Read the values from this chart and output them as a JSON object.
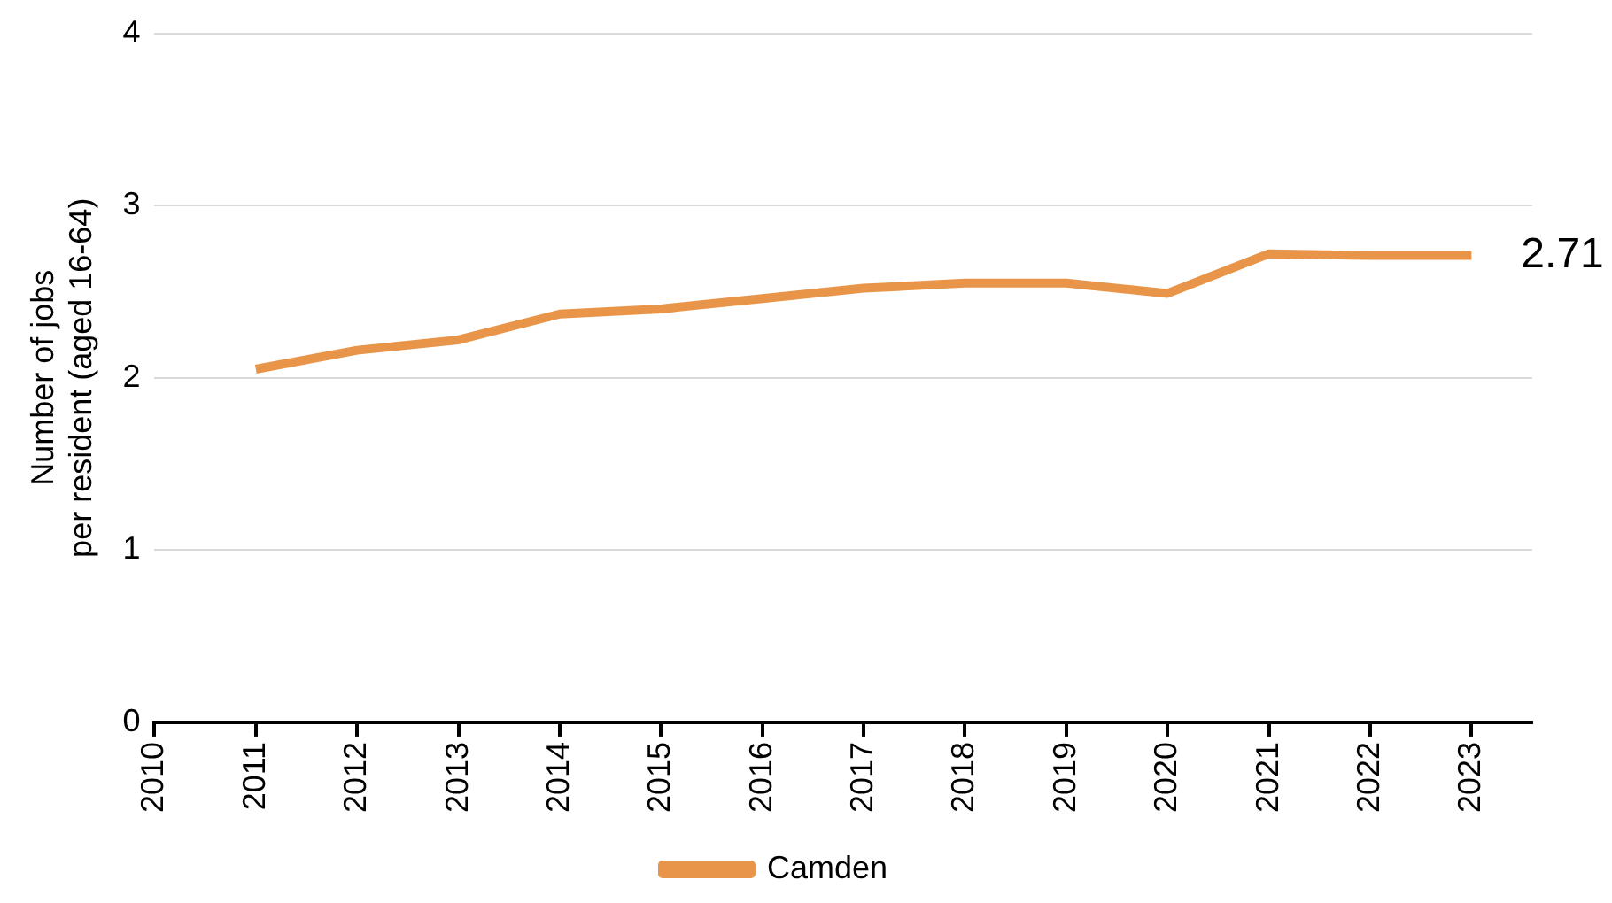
{
  "chart_data": {
    "type": "line",
    "ylabel": "Number of jobs\nper resident (aged 16-64)",
    "x": [
      2011,
      2012,
      2013,
      2014,
      2015,
      2016,
      2017,
      2018,
      2019,
      2020,
      2021,
      2022,
      2023
    ],
    "series": [
      {
        "name": "Camden",
        "color": "#e8954a",
        "values": [
          2.05,
          2.16,
          2.22,
          2.37,
          2.4,
          2.46,
          2.52,
          2.55,
          2.55,
          2.49,
          2.72,
          2.71,
          2.71
        ]
      }
    ],
    "xlim": [
      2010,
      2023.6
    ],
    "xticks": [
      2010,
      2011,
      2012,
      2013,
      2014,
      2015,
      2016,
      2017,
      2018,
      2019,
      2020,
      2021,
      2022,
      2023
    ],
    "ylim": [
      0,
      4
    ],
    "yticks": [
      0,
      1,
      2,
      3,
      4
    ],
    "grid": "y",
    "legend": "bottom",
    "marker": "none",
    "line_style": "solid",
    "annotations": [
      {
        "text": "2.71",
        "x": 2023,
        "y": 2.71
      }
    ]
  }
}
